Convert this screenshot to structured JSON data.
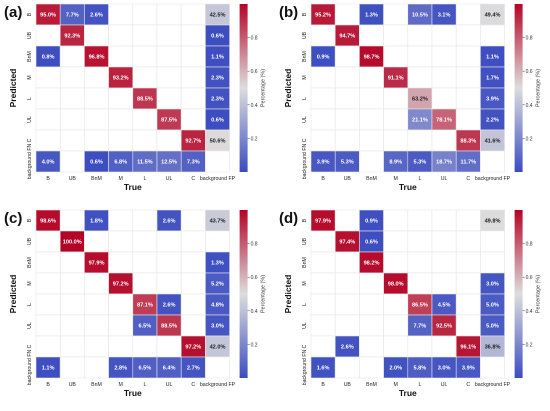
{
  "colors": {
    "low": "#3b4cc0",
    "mid": "#dddddd",
    "high": "#b40426",
    "grid": "#e6e6e6"
  },
  "chart_data": [
    {
      "type": "heatmap",
      "panel_label": "(a)",
      "xlabel": "True",
      "ylabel": "Predicted",
      "colorbar_label": "Percentage (%)",
      "colorbar_ticks": [
        "0.2",
        "0.4",
        "0.6",
        "0.8"
      ],
      "x_categories": [
        "B",
        "UB",
        "BnM",
        "M",
        "L",
        "UL",
        "C",
        "background FP"
      ],
      "y_categories": [
        "B",
        "UB",
        "BnM",
        "M",
        "L",
        "UL",
        "C",
        "background FN"
      ],
      "values": [
        [
          95.0,
          7.7,
          2.6,
          null,
          null,
          null,
          null,
          42.5
        ],
        [
          null,
          92.3,
          null,
          null,
          null,
          null,
          null,
          0.6
        ],
        [
          0.8,
          null,
          96.8,
          null,
          null,
          null,
          null,
          1.1
        ],
        [
          null,
          null,
          null,
          93.2,
          null,
          null,
          null,
          2.3
        ],
        [
          null,
          null,
          null,
          null,
          88.5,
          null,
          null,
          2.3
        ],
        [
          null,
          null,
          null,
          null,
          null,
          87.5,
          null,
          0.6
        ],
        [
          null,
          null,
          null,
          null,
          null,
          null,
          92.7,
          50.6
        ],
        [
          4.0,
          null,
          0.6,
          6.8,
          11.5,
          12.5,
          7.3,
          null
        ]
      ]
    },
    {
      "type": "heatmap",
      "panel_label": "(b)",
      "xlabel": "True",
      "ylabel": "Predicted",
      "colorbar_label": "Percentage (%)",
      "colorbar_ticks": [
        "0.2",
        "0.4",
        "0.6",
        "0.8"
      ],
      "x_categories": [
        "B",
        "UB",
        "BnM",
        "M",
        "L",
        "UL",
        "C",
        "background FP"
      ],
      "y_categories": [
        "B",
        "UB",
        "BnM",
        "M",
        "L",
        "UL",
        "C",
        "background FN"
      ],
      "values": [
        [
          95.2,
          null,
          1.3,
          null,
          10.5,
          3.1,
          null,
          49.4
        ],
        [
          null,
          94.7,
          null,
          null,
          null,
          null,
          null,
          null
        ],
        [
          0.9,
          null,
          98.7,
          null,
          null,
          null,
          null,
          1.1
        ],
        [
          null,
          null,
          null,
          91.1,
          null,
          null,
          null,
          1.7
        ],
        [
          null,
          null,
          null,
          null,
          63.2,
          null,
          null,
          3.9
        ],
        [
          null,
          null,
          null,
          null,
          21.1,
          78.1,
          null,
          2.2
        ],
        [
          null,
          null,
          null,
          null,
          null,
          null,
          88.3,
          41.6
        ],
        [
          3.9,
          5.3,
          null,
          8.9,
          5.3,
          18.7,
          11.7,
          null
        ]
      ]
    },
    {
      "type": "heatmap",
      "panel_label": "(c)",
      "xlabel": "True",
      "ylabel": "Predicted",
      "colorbar_label": "Percentage (%)",
      "colorbar_ticks": [
        "0.2",
        "0.4",
        "0.6",
        "0.8"
      ],
      "x_categories": [
        "B",
        "UB",
        "BnM",
        "M",
        "L",
        "UL",
        "C",
        "background FP"
      ],
      "y_categories": [
        "B",
        "UB",
        "BnM",
        "M",
        "L",
        "UL",
        "C",
        "background FN"
      ],
      "values": [
        [
          98.6,
          null,
          1.8,
          null,
          null,
          2.6,
          null,
          43.7
        ],
        [
          null,
          100.0,
          null,
          null,
          null,
          null,
          null,
          null
        ],
        [
          null,
          null,
          97.9,
          null,
          null,
          null,
          null,
          1.3
        ],
        [
          null,
          null,
          null,
          97.2,
          null,
          null,
          null,
          5.2
        ],
        [
          null,
          null,
          null,
          null,
          87.1,
          2.6,
          null,
          4.8
        ],
        [
          null,
          null,
          null,
          null,
          6.5,
          88.5,
          null,
          3.0
        ],
        [
          null,
          null,
          null,
          null,
          null,
          null,
          97.2,
          42.0
        ],
        [
          1.1,
          null,
          null,
          2.8,
          6.5,
          6.4,
          2.7,
          null
        ]
      ]
    },
    {
      "type": "heatmap",
      "panel_label": "(d)",
      "xlabel": "True",
      "ylabel": "Predicted",
      "colorbar_label": "Percentage (%)",
      "colorbar_ticks": [
        "0.2",
        "0.4",
        "0.6",
        "0.8"
      ],
      "x_categories": [
        "B",
        "UB",
        "BnM",
        "M",
        "L",
        "UL",
        "C",
        "background FP"
      ],
      "y_categories": [
        "B",
        "UB",
        "BnM",
        "M",
        "L",
        "UL",
        "C",
        "background FN"
      ],
      "values": [
        [
          97.9,
          null,
          0.9,
          null,
          null,
          null,
          null,
          49.8
        ],
        [
          null,
          97.4,
          0.6,
          null,
          null,
          null,
          null,
          null
        ],
        [
          null,
          null,
          98.2,
          null,
          null,
          null,
          null,
          null
        ],
        [
          null,
          null,
          null,
          98.0,
          null,
          null,
          null,
          3.0
        ],
        [
          null,
          null,
          null,
          null,
          86.5,
          4.5,
          null,
          5.0
        ],
        [
          null,
          null,
          null,
          null,
          7.7,
          92.5,
          null,
          5.0
        ],
        [
          null,
          2.6,
          null,
          null,
          null,
          null,
          96.1,
          36.8
        ],
        [
          1.6,
          null,
          null,
          2.0,
          5.8,
          3.0,
          3.9,
          null
        ]
      ]
    }
  ]
}
